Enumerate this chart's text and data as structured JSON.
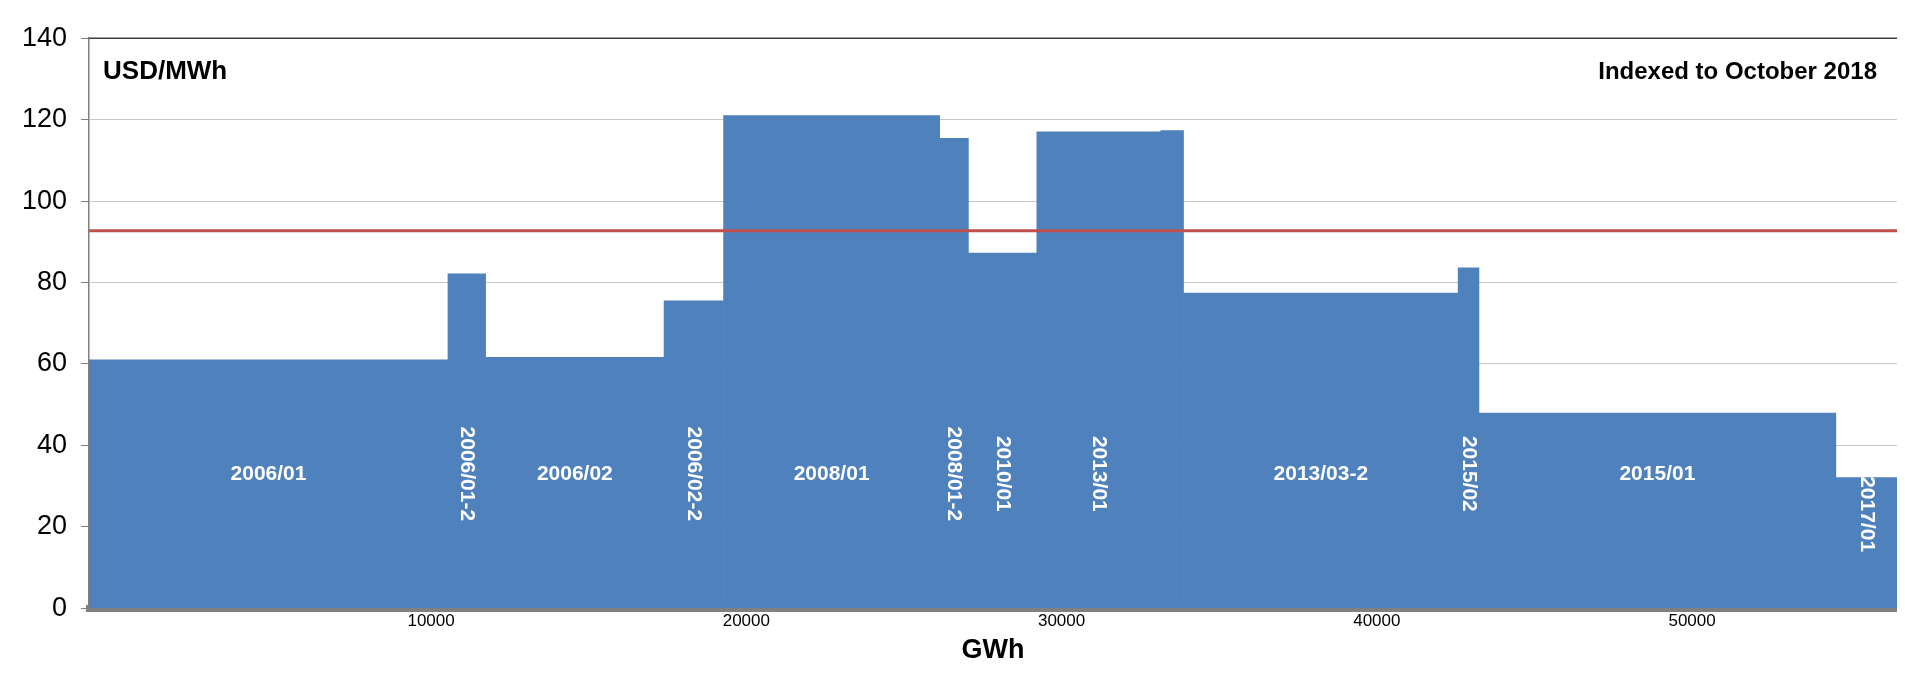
{
  "chart_data": {
    "type": "histogram",
    "ylabel": "USD/MWh",
    "xlabel": "GWh",
    "annotations": [
      "Indexed to October 2018"
    ],
    "bins": [
      -850,
      10535,
      11730,
      17390,
      19277,
      26132,
      27044,
      29214,
      33145,
      33868,
      42579,
      43239,
      54560,
      56500
    ],
    "values": [
      61.0,
      82.1,
      61.6,
      75.5,
      121.0,
      115.4,
      87.2,
      117.0,
      117.3,
      77.4,
      83.6,
      47.9,
      32.1
    ],
    "categories": [
      "2006/01",
      "2006/01-2",
      "2006/02",
      "2006/02-2",
      "2008/01",
      "2008/01-2",
      "2010/01",
      "2013/01",
      null,
      "2013/03-2",
      "2015/02",
      "2015/01",
      "2017/01"
    ],
    "color": "#4f81bd",
    "xlim": [
      -850,
      56500
    ],
    "xticks": [
      10000,
      20000,
      30000,
      40000,
      50000
    ],
    "ylim": [
      0,
      140
    ],
    "yticks": [
      0,
      20,
      40,
      60,
      80,
      100,
      120,
      140
    ],
    "grid": "y",
    "ref_lines": [
      {
        "axis": "y",
        "value": 92.7,
        "color": "#c0504d"
      }
    ]
  }
}
